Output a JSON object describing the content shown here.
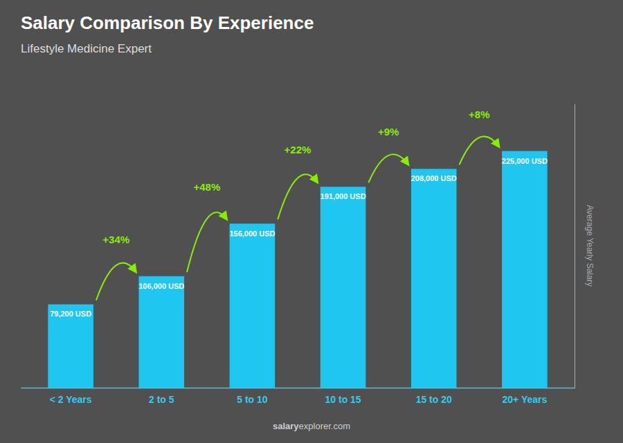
{
  "chart_data": {
    "type": "bar",
    "title": "Salary Comparison By Experience",
    "subtitle": "Lifestyle Medicine Expert",
    "y_label": "Average Yearly Salary",
    "source": [
      "salary",
      "explorer.com"
    ],
    "categories": [
      "< 2 Years",
      "2 to 5",
      "5 to 10",
      "10 to 15",
      "15 to 20",
      "20+ Years"
    ],
    "values": [
      79200,
      106000,
      156000,
      191000,
      208000,
      225000
    ],
    "value_labels": [
      "79,200 USD",
      "106,000 USD",
      "156,000 USD",
      "191,000 USD",
      "208,000 USD",
      "225,000 USD"
    ],
    "annotations": [
      "+34%",
      "+48%",
      "+22%",
      "+9%",
      "+8%"
    ],
    "color": "#1EC6F0",
    "annotation_color": "#88EE00",
    "ylim": [
      0,
      270000
    ],
    "grid": false,
    "data_labels": true,
    "tick_labels": "x"
  }
}
